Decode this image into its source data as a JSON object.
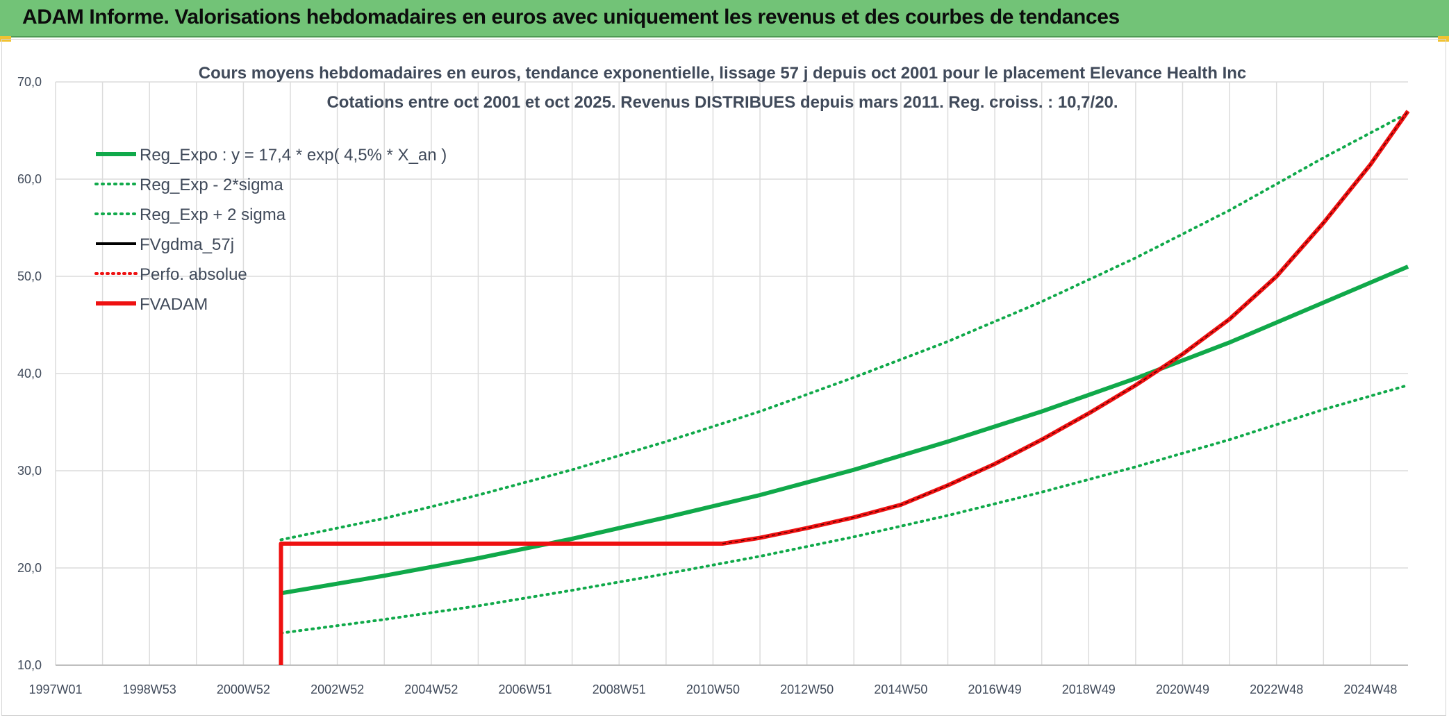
{
  "header": {
    "title": "ADAM Informe. Valorisations hebdomadaires en euros avec uniquement les revenus et des courbes de tendances"
  },
  "colors": {
    "banner": "#72c377",
    "regression": "#10a94a",
    "fvadam": "#ee1111",
    "gdma": "#000000",
    "grid": "#dcdcdc",
    "text": "#404a5a"
  },
  "chart_data": {
    "type": "line",
    "title_line1": "Cours moyens hebdomadaires en euros, tendance exponentielle, lissage 57 j depuis oct 2001 pour le placement Elevance Health Inc",
    "title_line2": "Cotations entre oct 2001 et oct 2025. Revenus DISTRIBUES depuis mars 2011. Reg. croiss. : 10,7/20.",
    "xlabel": "",
    "ylabel": "",
    "xlim": [
      1997.0,
      2025.8
    ],
    "ylim": [
      10,
      70
    ],
    "yticks": [
      "10,0",
      "20,0",
      "30,0",
      "40,0",
      "50,0",
      "60,0",
      "70,0"
    ],
    "ytick_values": [
      10,
      20,
      30,
      40,
      50,
      60,
      70
    ],
    "xticks": [
      "1997W01",
      "1998W53",
      "2000W52",
      "2002W52",
      "2004W52",
      "2006W51",
      "2008W51",
      "2010W50",
      "2012W50",
      "2014W50",
      "2016W49",
      "2018W49",
      "2020W49",
      "2022W48",
      "2024W48"
    ],
    "xtick_values": [
      1997.0,
      1999.0,
      2001.0,
      2003.0,
      2005.0,
      2007.0,
      2009.0,
      2011.0,
      2013.0,
      2015.0,
      2017.0,
      2019.0,
      2021.0,
      2023.0,
      2025.0
    ],
    "grid": true,
    "legend_position": "top-left",
    "legend": [
      {
        "label": "Reg_Expo : y = 17,4 * exp( 4,5% *  X_an )",
        "style": "solid-green"
      },
      {
        "label": "Reg_Exp - 2*sigma",
        "style": "dotted-green"
      },
      {
        "label": "Reg_Exp + 2 sigma",
        "style": "dotted-green"
      },
      {
        "label": "FVgdma_57j",
        "style": "solid-black"
      },
      {
        "label": "Perfo. absolue",
        "style": "dotted-red"
      },
      {
        "label": "FVADAM",
        "style": "solid-red"
      }
    ],
    "series": [
      {
        "name": "Reg_Expo",
        "x": [
          2001.8,
          2004,
          2006,
          2008,
          2010,
          2012,
          2014,
          2016,
          2018,
          2020,
          2022,
          2024,
          2025.8
        ],
        "values": [
          17.4,
          19.2,
          21.0,
          23.0,
          25.2,
          27.5,
          30.1,
          33.0,
          36.1,
          39.5,
          43.2,
          47.3,
          51.0
        ]
      },
      {
        "name": "Reg_Exp - 2*sigma",
        "x": [
          2001.8,
          2004,
          2006,
          2008,
          2010,
          2012,
          2014,
          2016,
          2018,
          2020,
          2022,
          2024,
          2025.8
        ],
        "values": [
          13.3,
          14.7,
          16.1,
          17.7,
          19.4,
          21.2,
          23.2,
          25.4,
          27.8,
          30.4,
          33.2,
          36.3,
          38.8
        ]
      },
      {
        "name": "Reg_Exp + 2 sigma",
        "x": [
          2001.8,
          2004,
          2006,
          2008,
          2010,
          2012,
          2014,
          2016,
          2018,
          2020,
          2022,
          2024,
          2025.8
        ],
        "values": [
          22.9,
          25.1,
          27.5,
          30.1,
          33.0,
          36.1,
          39.6,
          43.3,
          47.4,
          51.9,
          56.8,
          62.2,
          66.8
        ]
      },
      {
        "name": "FVADAM",
        "x": [
          2001.8,
          2001.8,
          2011.2,
          2012,
          2013,
          2014,
          2015,
          2016,
          2017,
          2018,
          2019,
          2020,
          2021,
          2022,
          2023,
          2024,
          2025,
          2025.8
        ],
        "values": [
          10.0,
          22.5,
          22.5,
          23.1,
          24.1,
          25.2,
          26.5,
          28.5,
          30.7,
          33.2,
          35.9,
          38.8,
          42.0,
          45.6,
          50.0,
          55.5,
          61.5,
          67.0
        ]
      }
    ]
  }
}
